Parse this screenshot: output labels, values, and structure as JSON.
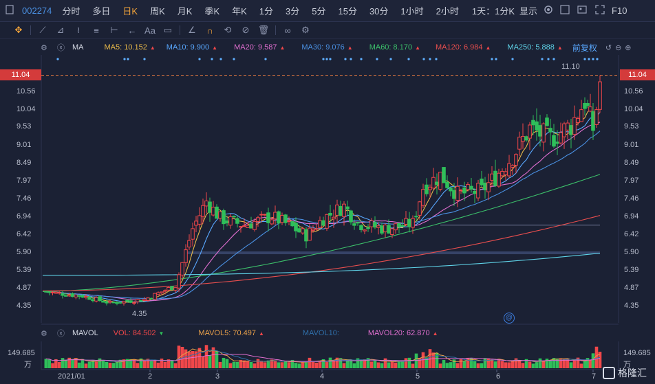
{
  "topbar": {
    "code": "002274",
    "periods": [
      "分时",
      "多日",
      "日K",
      "周K",
      "月K",
      "季K",
      "年K",
      "1分",
      "3分",
      "5分",
      "15分",
      "30分",
      "1小时",
      "2小时"
    ],
    "active_period": "日K",
    "interval": "1天：1分K",
    "display": "显示",
    "f10": "F10"
  },
  "ma": {
    "label": "MA",
    "ma5": "MA5: 10.152",
    "ma10": "MA10: 9.900",
    "ma20": "MA20: 9.587",
    "ma30": "MA30: 9.076",
    "ma60": "MA60: 8.170",
    "ma120": "MA120: 6.984",
    "ma250": "MA250: 5.888",
    "adjust": "前复权"
  },
  "colors": {
    "ma5": "#e8b94a",
    "ma10": "#59a8ff",
    "ma20": "#e16fd0",
    "ma30": "#4a90e2",
    "ma60": "#3cbf6a",
    "ma120": "#e84e4e",
    "ma250": "#5fd3e8",
    "up": "#f0474a",
    "down": "#2fbf5a"
  },
  "price_axis": [
    "11.04",
    "10.56",
    "10.04",
    "9.53",
    "9.01",
    "8.49",
    "7.97",
    "7.46",
    "6.94",
    "6.42",
    "5.90",
    "5.39",
    "4.87",
    "4.35"
  ],
  "current_price": "11.04",
  "high_label": "11.10",
  "low_label": "4.35",
  "vol": {
    "label": "MAVOL",
    "vol": "VOL: 84.502",
    "mavol5": "MAVOL5: 70.497",
    "mavol10": "MAVOL10:",
    "mavol20": "MAVOL20: 62.870",
    "axis_top": "149.685",
    "unit": "万"
  },
  "x_axis": [
    "2021/01",
    "2",
    "3",
    "4",
    "5",
    "6",
    "7"
  ],
  "logo": "格隆汇"
}
